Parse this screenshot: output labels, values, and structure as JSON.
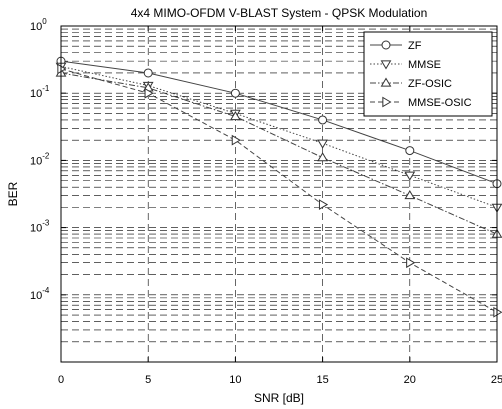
{
  "chart_data": {
    "type": "line",
    "title": "4x4 MIMO-OFDM V-BLAST System - QPSK Modulation",
    "xlabel": "SNR [dB]",
    "ylabel": "BER",
    "xlim": [
      0,
      25
    ],
    "ylim": [
      1e-05,
      1
    ],
    "yscale": "log",
    "grid": true,
    "legend_position": "top-right",
    "x_ticks": [
      0,
      5,
      10,
      15,
      20,
      25
    ],
    "x_tick_labels": [
      "0",
      "5",
      "10",
      "15",
      "20",
      "25"
    ],
    "y_ticks": [
      1,
      0.1,
      0.01,
      0.001,
      0.0001
    ],
    "y_tick_labels": [
      {
        "base": "10",
        "exp": "0"
      },
      {
        "base": "10",
        "exp": "-1"
      },
      {
        "base": "10",
        "exp": "-2"
      },
      {
        "base": "10",
        "exp": "-3"
      },
      {
        "base": "10",
        "exp": "-4"
      }
    ],
    "x": [
      0,
      5,
      10,
      15,
      20,
      25
    ],
    "series": [
      {
        "name": "ZF",
        "marker": "circle",
        "dash": "solid",
        "values": [
          0.3,
          0.2,
          0.1,
          0.04,
          0.014,
          0.0045
        ]
      },
      {
        "name": "MMSE",
        "marker": "triangle-down",
        "dash": "dotted",
        "values": [
          0.25,
          0.13,
          0.05,
          0.018,
          0.006,
          0.002
        ]
      },
      {
        "name": "ZF-OSIC",
        "marker": "triangle-up",
        "dash": "dashdot",
        "values": [
          0.2,
          0.12,
          0.045,
          0.011,
          0.003,
          0.0008
        ]
      },
      {
        "name": "MMSE-OSIC",
        "marker": "triangle-right",
        "dash": "dashed",
        "values": [
          0.23,
          0.1,
          0.02,
          0.0022,
          0.0003,
          5.5e-05
        ]
      }
    ]
  }
}
